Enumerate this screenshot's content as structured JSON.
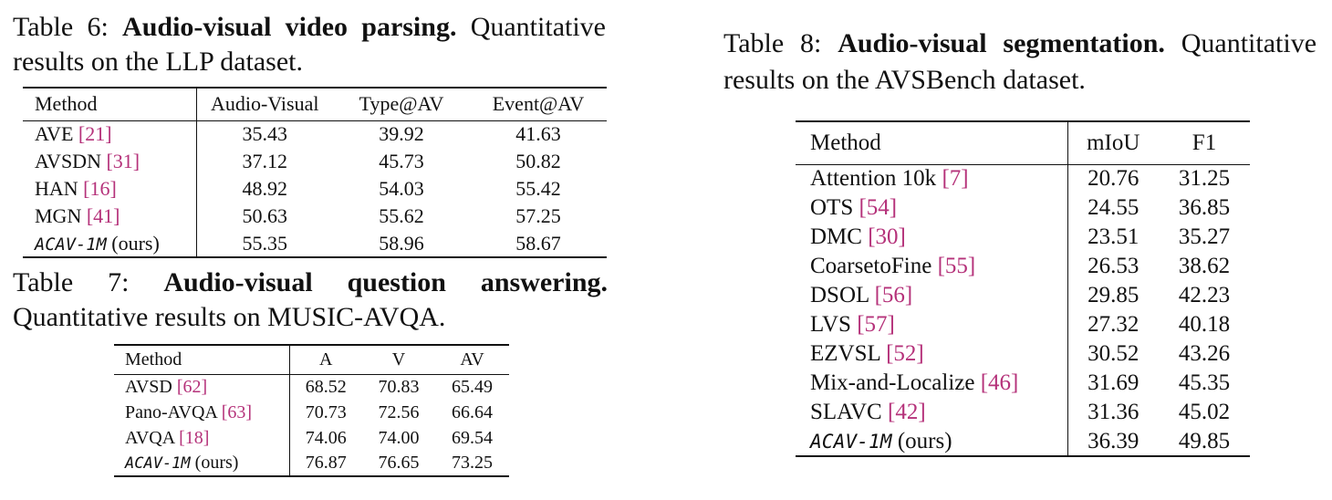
{
  "tables": [
    {
      "label": "Table 6:",
      "title": "Audio-visual video parsing.",
      "caption": "Quantitative results on the LLP dataset.",
      "columns": [
        "Method",
        "Audio-Visual",
        "Type@AV",
        "Event@AV"
      ],
      "rows": [
        {
          "method": "AVE",
          "cite": "[21]",
          "values": [
            "35.43",
            "39.92",
            "41.63"
          ]
        },
        {
          "method": "AVSDN",
          "cite": "[31]",
          "values": [
            "37.12",
            "45.73",
            "50.82"
          ]
        },
        {
          "method": "HAN",
          "cite": "[16]",
          "values": [
            "48.92",
            "54.03",
            "55.42"
          ]
        },
        {
          "method": "MGN",
          "cite": "[41]",
          "values": [
            "50.63",
            "55.62",
            "57.25"
          ]
        },
        {
          "method": "ACAV-1M",
          "note": "(ours)",
          "values": [
            "55.35",
            "58.96",
            "58.67"
          ]
        }
      ]
    },
    {
      "label": "Table 7:",
      "title": "Audio-visual question answering.",
      "caption": "Quantitative results on MUSIC-AVQA.",
      "columns": [
        "Method",
        "A",
        "V",
        "AV"
      ],
      "rows": [
        {
          "method": "AVSD",
          "cite": "[62]",
          "values": [
            "68.52",
            "70.83",
            "65.49"
          ]
        },
        {
          "method": "Pano-AVQA",
          "cite": "[63]",
          "values": [
            "70.73",
            "72.56",
            "66.64"
          ]
        },
        {
          "method": "AVQA",
          "cite": "[18]",
          "values": [
            "74.06",
            "74.00",
            "69.54"
          ]
        },
        {
          "method": "ACAV-1M",
          "note": "(ours)",
          "values": [
            "76.87",
            "76.65",
            "73.25"
          ]
        }
      ]
    },
    {
      "label": "Table 8:",
      "title": "Audio-visual segmentation.",
      "caption": "Quantitative results on the AVSBench dataset.",
      "columns": [
        "Method",
        "mIoU",
        "F1"
      ],
      "rows": [
        {
          "method": "Attention 10k",
          "cite": "[7]",
          "values": [
            "20.76",
            "31.25"
          ]
        },
        {
          "method": "OTS",
          "cite": "[54]",
          "values": [
            "24.55",
            "36.85"
          ]
        },
        {
          "method": "DMC",
          "cite": "[30]",
          "values": [
            "23.51",
            "35.27"
          ]
        },
        {
          "method": "CoarsetoFine",
          "cite": "[55]",
          "values": [
            "26.53",
            "38.62"
          ]
        },
        {
          "method": "DSOL",
          "cite": "[56]",
          "values": [
            "29.85",
            "42.23"
          ]
        },
        {
          "method": "LVS",
          "cite": "[57]",
          "values": [
            "27.32",
            "40.18"
          ]
        },
        {
          "method": "EZVSL",
          "cite": "[52]",
          "values": [
            "30.52",
            "43.26"
          ]
        },
        {
          "method": "Mix-and-Localize",
          "cite": "[46]",
          "values": [
            "31.69",
            "45.35"
          ]
        },
        {
          "method": "SLAVC",
          "cite": "[42]",
          "values": [
            "31.36",
            "45.02"
          ]
        },
        {
          "method": "ACAV-1M",
          "note": "(ours)",
          "values": [
            "36.39",
            "49.85"
          ]
        }
      ]
    }
  ]
}
